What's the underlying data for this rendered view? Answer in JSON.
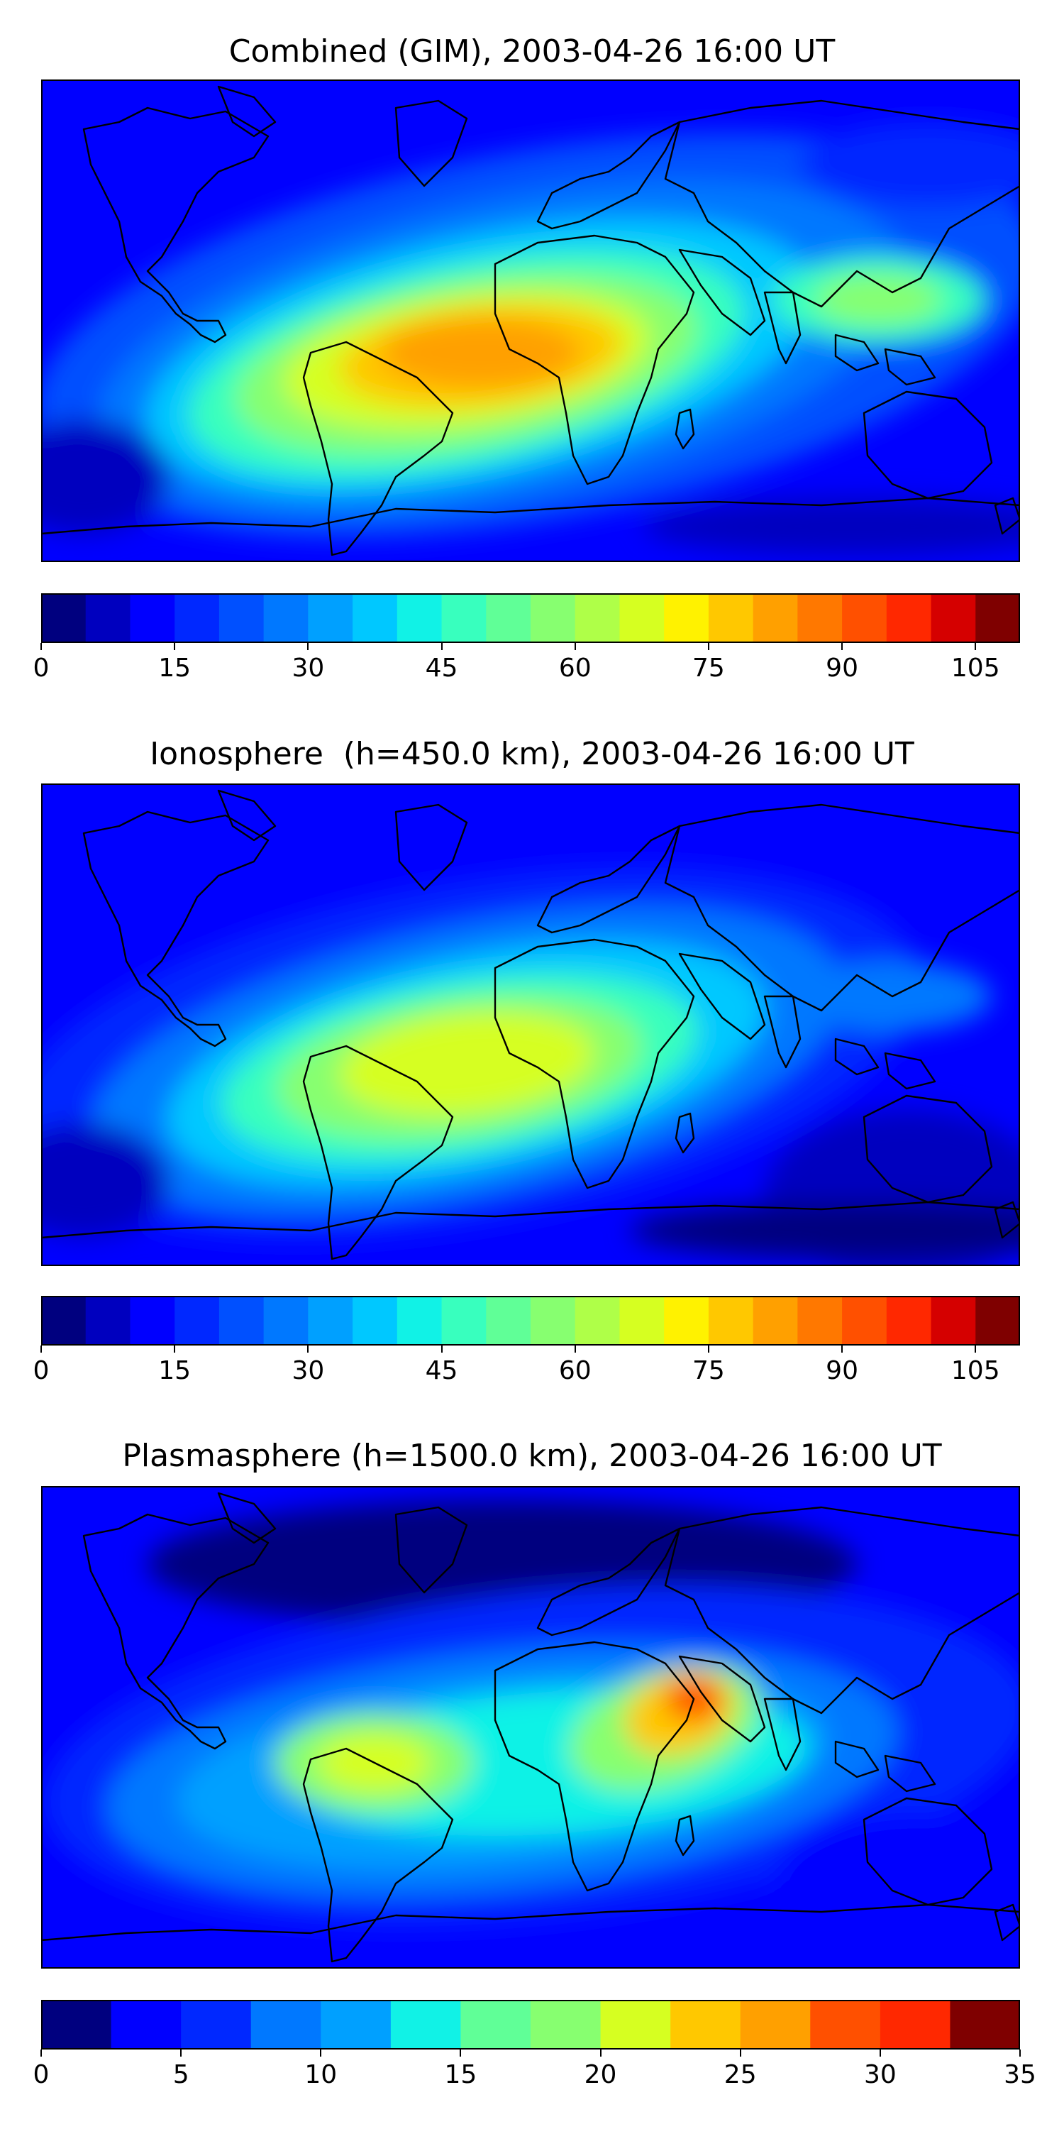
{
  "panels": [
    {
      "title": "Combined (GIM), 2003-04-26 16:00 UT",
      "colorbar": {
        "min": 0,
        "max": 110,
        "levels": 22,
        "ticks": [
          "0",
          "15",
          "30",
          "45",
          "60",
          "75",
          "90",
          "105"
        ],
        "tick_values": [
          0,
          15,
          30,
          45,
          60,
          75,
          90,
          105
        ]
      }
    },
    {
      "title": "Ionosphere  (h=450.0 km), 2003-04-26 16:00 UT",
      "colorbar": {
        "min": 0,
        "max": 110,
        "levels": 22,
        "ticks": [
          "0",
          "15",
          "30",
          "45",
          "60",
          "75",
          "90",
          "105"
        ],
        "tick_values": [
          0,
          15,
          30,
          45,
          60,
          75,
          90,
          105
        ]
      }
    },
    {
      "title": "Plasmasphere (h=1500.0 km), 2003-04-26 16:00 UT",
      "colorbar": {
        "min": 0,
        "max": 35,
        "levels": 14,
        "ticks": [
          "0",
          "5",
          "10",
          "15",
          "20",
          "25",
          "30",
          "35"
        ],
        "tick_values": [
          0,
          5,
          10,
          15,
          20,
          25,
          30,
          35
        ]
      }
    }
  ],
  "colormap": [
    "#00007f",
    "#0000bf",
    "#0000ff",
    "#0028ff",
    "#0050ff",
    "#0078ff",
    "#00a0ff",
    "#00c8ff",
    "#11f2e6",
    "#38ffbe",
    "#60ff97",
    "#87ff70",
    "#afff48",
    "#d6ff21",
    "#fff200",
    "#ffc800",
    "#ffa000",
    "#ff7800",
    "#ff5000",
    "#ff2800",
    "#d50000",
    "#7f0000"
  ]
}
